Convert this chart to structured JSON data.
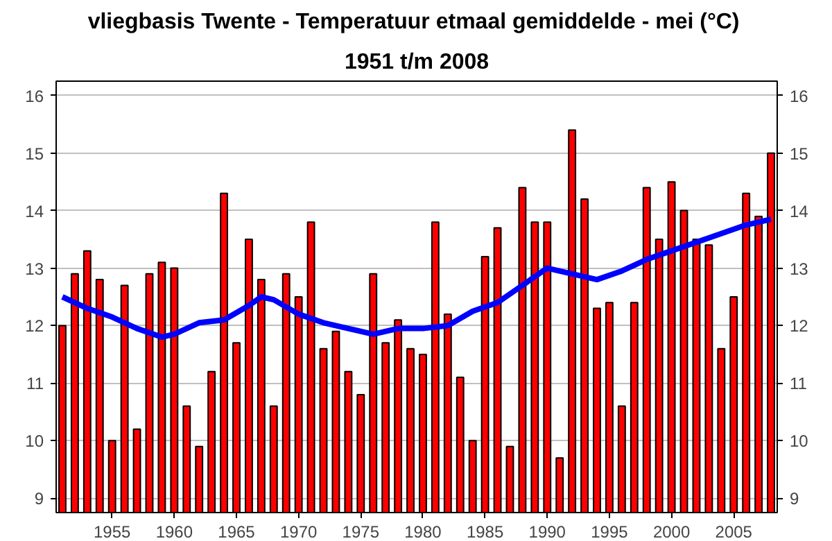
{
  "chart_data": {
    "type": "bar",
    "title": "vliegbasis Twente - Temperatuur etmaal gemiddelde - mei  (°C)",
    "subtitle": "1951 t/m 2008",
    "x": [
      1951,
      1952,
      1953,
      1954,
      1955,
      1956,
      1957,
      1958,
      1959,
      1960,
      1961,
      1962,
      1963,
      1964,
      1965,
      1966,
      1967,
      1968,
      1969,
      1970,
      1971,
      1972,
      1973,
      1974,
      1975,
      1976,
      1977,
      1978,
      1979,
      1980,
      1981,
      1982,
      1983,
      1984,
      1985,
      1986,
      1987,
      1988,
      1989,
      1990,
      1991,
      1992,
      1993,
      1994,
      1995,
      1996,
      1997,
      1998,
      1999,
      2000,
      2001,
      2002,
      2003,
      2004,
      2005,
      2006,
      2007,
      2008
    ],
    "series": [
      {
        "color": "#ff0000",
        "values": [
          12.0,
          12.9,
          13.3,
          12.8,
          10.0,
          12.7,
          10.2,
          12.9,
          13.1,
          13.0,
          10.6,
          9.9,
          11.2,
          14.3,
          11.7,
          13.5,
          12.8,
          10.6,
          12.9,
          12.5,
          13.8,
          11.6,
          11.9,
          11.2,
          10.8,
          12.9,
          11.7,
          12.1,
          11.6,
          11.5,
          13.8,
          12.2,
          11.1,
          10.0,
          13.2,
          13.7,
          9.9,
          14.4,
          13.8,
          13.8,
          9.7,
          15.4,
          14.2,
          12.3,
          12.4,
          10.6,
          12.4,
          14.4,
          13.5,
          14.5,
          14.0,
          13.5,
          13.4,
          11.6,
          12.5,
          14.3,
          13.9,
          15.0
        ]
      },
      {
        "type": "line",
        "color": "#0000ff",
        "x": [
          1951,
          1953,
          1955,
          1957,
          1959,
          1960,
          1962,
          1964,
          1966,
          1967,
          1968,
          1970,
          1972,
          1974,
          1976,
          1978,
          1980,
          1982,
          1984,
          1986,
          1988,
          1990,
          1992,
          1994,
          1996,
          1998,
          2000,
          2002,
          2004,
          2006,
          2008
        ],
        "values": [
          12.5,
          12.3,
          12.15,
          11.95,
          11.8,
          11.85,
          12.05,
          12.1,
          12.35,
          12.5,
          12.45,
          12.2,
          12.05,
          11.95,
          11.85,
          11.95,
          11.95,
          12.0,
          12.25,
          12.4,
          12.7,
          13.0,
          12.9,
          12.8,
          12.95,
          13.15,
          13.3,
          13.45,
          13.6,
          13.75,
          13.85
        ]
      }
    ],
    "xlim": [
      1950.5,
      2008.5
    ],
    "xticks": [
      1955,
      1960,
      1965,
      1970,
      1975,
      1980,
      1985,
      1990,
      1995,
      2000,
      2005
    ],
    "ylim": [
      8.75,
      16.25
    ],
    "yticks": [
      9,
      10,
      11,
      12,
      13,
      14,
      15,
      16
    ],
    "y2lim": [
      8.75,
      16.25
    ],
    "y2ticks": [
      9,
      10,
      11,
      12,
      13,
      14,
      15,
      16
    ],
    "grid": "y"
  }
}
